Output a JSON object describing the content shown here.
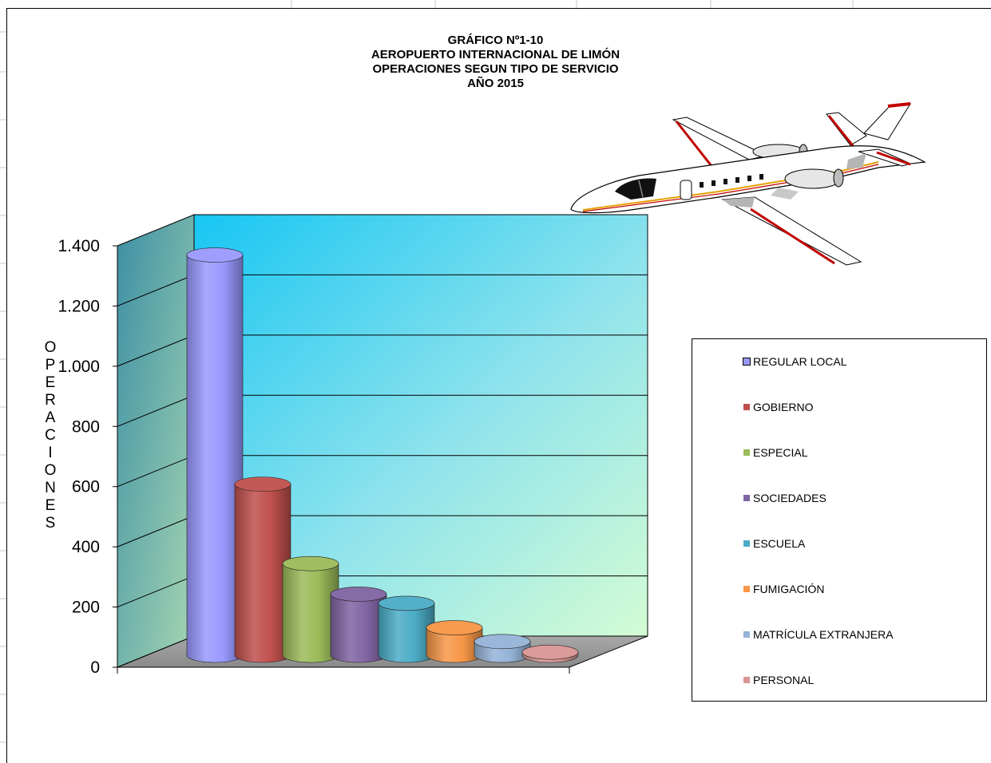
{
  "chart_data": {
    "type": "bar",
    "title_lines": [
      "GRÁFICO Nº1-10",
      "AEROPUERTO  INTERNACIONAL  DE  LIMÓN",
      "OPERACIONES  SEGUN  TIPO DE SERVICIO",
      "AÑO 2015"
    ],
    "ylabel_letters": [
      "O",
      "P",
      "E",
      "R",
      "A",
      "C",
      "I",
      "O",
      "N",
      "E",
      "S"
    ],
    "ylim": [
      0,
      1400
    ],
    "yticks": [
      {
        "value": 0,
        "label": "0"
      },
      {
        "value": 200,
        "label": "200"
      },
      {
        "value": 400,
        "label": "400"
      },
      {
        "value": 600,
        "label": "600"
      },
      {
        "value": 800,
        "label": "800"
      },
      {
        "value": 1000,
        "label": "1.000"
      },
      {
        "value": 1200,
        "label": "1.200"
      },
      {
        "value": 1400,
        "label": "1.400"
      }
    ],
    "grid": true,
    "legend_position": "right",
    "series": [
      {
        "name": "REGULAR LOCAL",
        "value": 1310,
        "color": "#9999ff"
      },
      {
        "name": "GOBIERNO",
        "value": 560,
        "color": "#c0504d"
      },
      {
        "name": "ESPECIAL",
        "value": 300,
        "color": "#9bbb59"
      },
      {
        "name": "SOCIEDADES",
        "value": 200,
        "color": "#8064a2"
      },
      {
        "name": "ESCUELA",
        "value": 170,
        "color": "#4bacc6"
      },
      {
        "name": "FUMIGACIÓN",
        "value": 90,
        "color": "#f79646"
      },
      {
        "name": "MATRÍCULA EXTRANJERA",
        "value": 45,
        "color": "#95b3d7"
      },
      {
        "name": "PERSONAL",
        "value": 10,
        "color": "#d99694"
      }
    ]
  }
}
